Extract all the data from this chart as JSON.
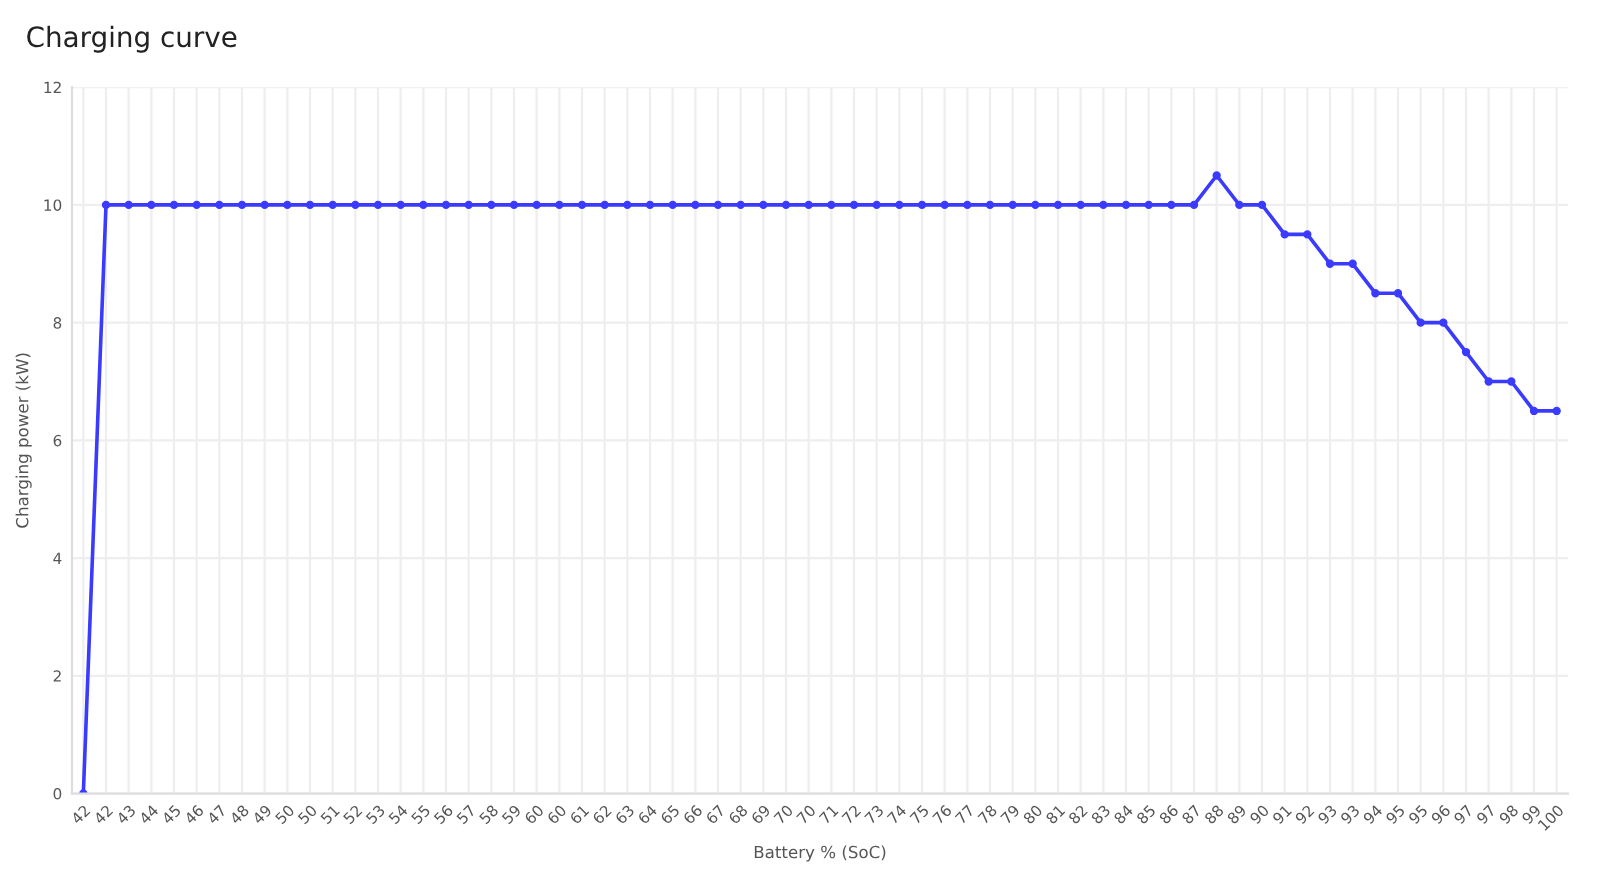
{
  "chart_data": {
    "type": "line",
    "title": "Charging curve",
    "xlabel": "Battery % (SoC)",
    "ylabel": "Charging power (kW)",
    "categories": [
      "42",
      "42",
      "43",
      "44",
      "45",
      "46",
      "47",
      "48",
      "49",
      "50",
      "50",
      "51",
      "52",
      "53",
      "54",
      "55",
      "56",
      "57",
      "58",
      "59",
      "60",
      "60",
      "61",
      "62",
      "63",
      "64",
      "65",
      "66",
      "67",
      "68",
      "69",
      "70",
      "70",
      "71",
      "72",
      "73",
      "74",
      "75",
      "76",
      "77",
      "78",
      "79",
      "80",
      "81",
      "82",
      "83",
      "84",
      "85",
      "86",
      "87",
      "88",
      "89",
      "90",
      "91",
      "92",
      "93",
      "93",
      "94",
      "95",
      "95",
      "96",
      "97",
      "97",
      "98",
      "99",
      "100"
    ],
    "series": [
      {
        "color": "#3b3bff",
        "values": [
          0,
          10,
          10,
          10,
          10,
          10,
          10,
          10,
          10,
          10,
          10,
          10,
          10,
          10,
          10,
          10,
          10,
          10,
          10,
          10,
          10,
          10,
          10,
          10,
          10,
          10,
          10,
          10,
          10,
          10,
          10,
          10,
          10,
          10,
          10,
          10,
          10,
          10,
          10,
          10,
          10,
          10,
          10,
          10,
          10,
          10,
          10,
          10,
          10,
          10,
          10.5,
          10,
          10,
          9.5,
          9.5,
          9,
          9,
          8.5,
          8.5,
          8,
          8,
          7.5,
          7,
          7,
          6.5,
          6.5
        ]
      }
    ],
    "ylim": [
      0,
      12
    ],
    "yticks": [
      0,
      2,
      4,
      6,
      8,
      10,
      12
    ],
    "grid": true,
    "marker": "circle",
    "line_style": "solid"
  }
}
